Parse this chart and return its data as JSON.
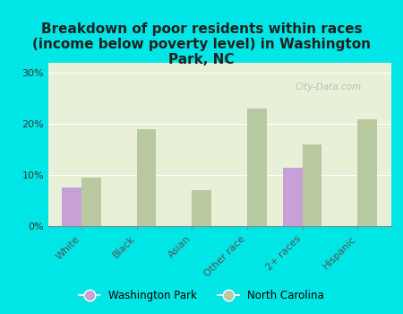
{
  "categories": [
    "White",
    "Black",
    "Asian",
    "Other race",
    "2+ races",
    "Hispanic"
  ],
  "washington_park": [
    7.5,
    0,
    0,
    0,
    11.5,
    0
  ],
  "north_carolina": [
    9.5,
    19.0,
    7.0,
    23.0,
    16.0,
    21.0
  ],
  "wp_color": "#c8a0d8",
  "nc_color": "#b8c8a0",
  "title": "Breakdown of poor residents within races\n(income below poverty level) in Washington\nPark, NC",
  "title_fontsize": 11,
  "title_fontweight": "bold",
  "ylabel_ticks": [
    "0%",
    "10%",
    "20%",
    "30%"
  ],
  "ytick_vals": [
    0,
    10,
    20,
    30
  ],
  "ylim": [
    0,
    32
  ],
  "background_color": "#00e5e5",
  "plot_bg_color": "#e8f0d8",
  "watermark": "City-Data.com",
  "legend_wp": "Washington Park",
  "legend_nc": "North Carolina",
  "bar_width": 0.35
}
